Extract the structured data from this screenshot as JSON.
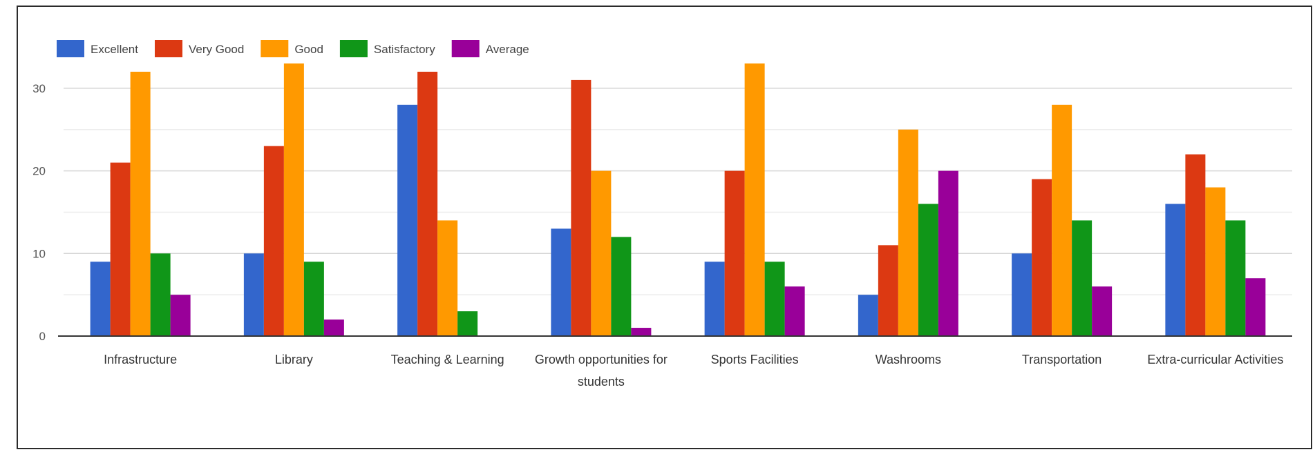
{
  "chart_data": {
    "type": "bar",
    "categories": [
      [
        "Infrastructure"
      ],
      [
        "Library"
      ],
      [
        "Teaching & Learning"
      ],
      [
        "Growth opportunities for",
        "students"
      ],
      [
        "Sports Facilities"
      ],
      [
        "Washrooms"
      ],
      [
        "Transportation"
      ],
      [
        "Extra-curricular Activities"
      ]
    ],
    "series": [
      {
        "name": "Excellent",
        "color": "#3366cc",
        "values": [
          9,
          10,
          28,
          13,
          9,
          5,
          10,
          16
        ]
      },
      {
        "name": "Very Good",
        "color": "#dc3912",
        "values": [
          21,
          23,
          32,
          31,
          20,
          11,
          19,
          22
        ]
      },
      {
        "name": "Good",
        "color": "#ff9900",
        "values": [
          32,
          33,
          14,
          20,
          33,
          25,
          28,
          18
        ]
      },
      {
        "name": "Satisfactory",
        "color": "#109618",
        "values": [
          10,
          9,
          3,
          12,
          9,
          16,
          14,
          14
        ]
      },
      {
        "name": "Average",
        "color": "#990099",
        "values": [
          5,
          2,
          0,
          1,
          6,
          20,
          6,
          7
        ]
      }
    ],
    "yticks": [
      0,
      10,
      20,
      30
    ],
    "ylim": [
      0,
      34
    ],
    "grid": true,
    "legend_position": "top-left",
    "title": "",
    "xlabel": "",
    "ylabel": ""
  }
}
